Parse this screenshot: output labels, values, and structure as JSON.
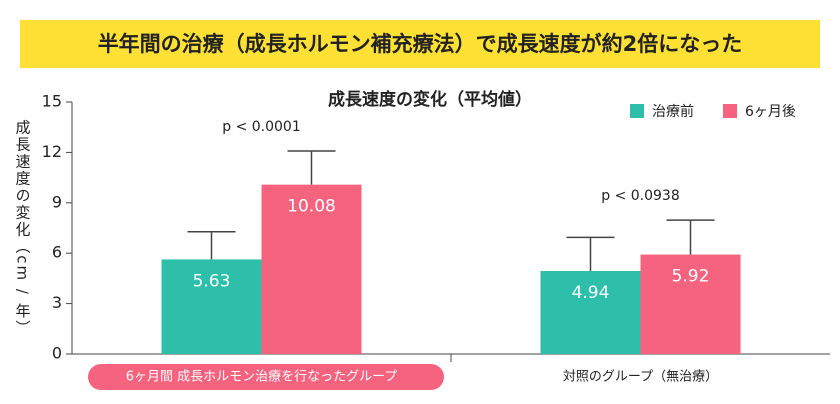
{
  "header": {
    "title": "半年間の治療（成長ホルモン補充療法）で成長速度が約2倍になった"
  },
  "chart_data": {
    "type": "bar",
    "title": "成長速度の変化（平均値）",
    "y_label": "成長速度の変化（cm / 年）",
    "categories": [
      "6ヶ月間 成長ホルモン治療を行なったグループ",
      "対照のグループ（無治療）"
    ],
    "series": [
      {
        "name": "治療前",
        "color": "#2dbfa9",
        "values": [
          5.63,
          4.94
        ],
        "errors": [
          1.65,
          2.0
        ]
      },
      {
        "name": "6ヶ月後",
        "color": "#f5637f",
        "values": [
          10.08,
          5.92
        ],
        "errors": [
          2.0,
          2.05
        ]
      }
    ],
    "annotations": [
      "p < 0.0001",
      "p < 0.0938"
    ],
    "ylim": [
      0,
      15
    ],
    "yticks": [
      0,
      3,
      6,
      9,
      12,
      15
    ],
    "grid": false,
    "legend": "top-right"
  }
}
